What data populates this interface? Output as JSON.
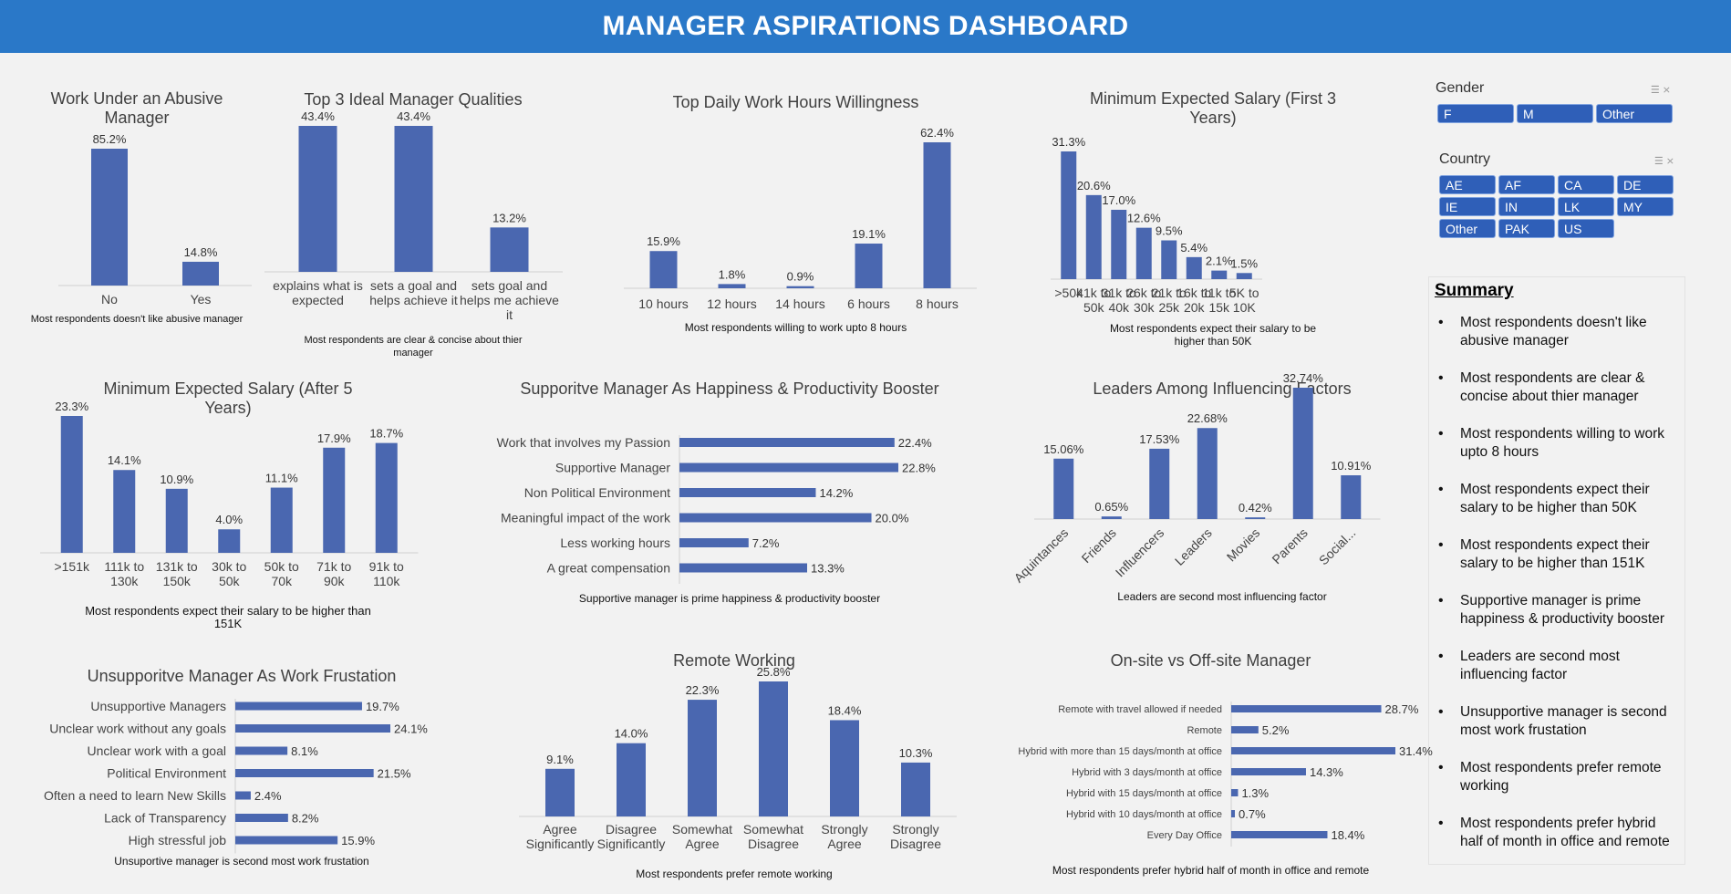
{
  "title": "MANAGER ASPIRATIONS DASHBOARD",
  "colors": {
    "header": "#2a78c8",
    "bar": "#4a67b0",
    "chip": "#2f5fb8",
    "background": "#f2f2f2"
  },
  "slicers": {
    "gender": {
      "title": "Gender",
      "items": [
        "F",
        "M",
        "Other"
      ],
      "icons": [
        "multi-select-icon",
        "clear-filter-icon"
      ]
    },
    "country": {
      "title": "Country",
      "items": [
        "AE",
        "AF",
        "CA",
        "DE",
        "IE",
        "IN",
        "LK",
        "MY",
        "Other",
        "PAK",
        "US"
      ],
      "icons": [
        "multi-select-icon",
        "clear-filter-icon"
      ]
    }
  },
  "summary": {
    "title": "Summary",
    "items": [
      "Most respondents doesn't like abusive manager",
      "Most respondents are clear & concise about thier manager",
      "Most respondents willing to work upto 8 hours",
      "Most respondents expect their salary to be higher than 50K",
      "Most respondents expect their salary to be higher than 151K",
      "Supportive manager is prime happiness & productivity booster",
      "Leaders are second most influencing factor",
      "Unsupportive manager is second most work frustation",
      "Most respondents prefer remote working",
      "Most respondents prefer hybrid half of month in office and remote"
    ]
  },
  "chart_data": [
    {
      "id": "abusive",
      "type": "bar",
      "title": "Work Under an Abusive Manager",
      "categories": [
        "No",
        "Yes"
      ],
      "values": [
        85.2,
        14.8
      ],
      "labels": [
        "85.2%",
        "14.8%"
      ],
      "note": "Most respondents doesn't like abusive manager"
    },
    {
      "id": "qualities",
      "type": "bar",
      "title": "Top 3 Ideal Manager Qualities",
      "categories": [
        "explains what is expected",
        "sets a goal and helps achieve it",
        "sets goal and helps me achieve it"
      ],
      "values": [
        43.4,
        43.4,
        13.2
      ],
      "labels": [
        "43.4%",
        "43.4%",
        "13.2%"
      ],
      "note": "Most respondents are clear & concise about thier manager"
    },
    {
      "id": "hours",
      "type": "bar",
      "title": "Top Daily Work Hours Willingness",
      "categories": [
        "10 hours",
        "12 hours",
        "14 hours",
        "6 hours",
        "8 hours"
      ],
      "values": [
        15.9,
        1.8,
        0.9,
        19.1,
        62.4
      ],
      "labels": [
        "15.9%",
        "1.8%",
        "0.9%",
        "19.1%",
        "62.4%"
      ],
      "note": "Most respondents willing to work upto 8 hours"
    },
    {
      "id": "salary3",
      "type": "bar",
      "title": "Minimum Expected Salary (First 3 Years)",
      "categories": [
        ">50k",
        "41k to 50k",
        "31k to 40k",
        "26k to 30k",
        "21k to 25k",
        "16k to 20k",
        "11k to 15k",
        "5K to 10K"
      ],
      "values": [
        31.3,
        20.6,
        17.0,
        12.6,
        9.5,
        5.4,
        2.1,
        1.5
      ],
      "labels": [
        "31.3%",
        "20.6%",
        "17.0%",
        "12.6%",
        "9.5%",
        "5.4%",
        "2.1%",
        "1.5%"
      ],
      "note": "Most respondents expect their salary to be higher than 50K"
    },
    {
      "id": "salary5",
      "type": "bar",
      "title": "Minimum Expected Salary (After 5 Years)",
      "categories": [
        ">151k",
        "111k to 130k",
        "131k to 150k",
        "30k to 50k",
        "50k to 70k",
        "71k to 90k",
        "91k to 110k"
      ],
      "values": [
        23.3,
        14.1,
        10.9,
        4.0,
        11.1,
        17.9,
        18.7
      ],
      "labels": [
        "23.3%",
        "14.1%",
        "10.9%",
        "4.0%",
        "11.1%",
        "17.9%",
        "18.7%"
      ],
      "note": "Most respondents expect their salary to be higher than 151K"
    },
    {
      "id": "supportive",
      "type": "bar",
      "orientation": "horizontal",
      "title": "Supporitve Manager As Happiness & Productivity Booster",
      "categories": [
        "Work that involves my Passion",
        "Supportive Manager",
        "Non Political Environment",
        "Meaningful impact of the work",
        "Less working hours",
        "A great compensation"
      ],
      "values": [
        22.4,
        22.8,
        14.2,
        20.0,
        7.2,
        13.3
      ],
      "labels": [
        "22.4%",
        "22.8%",
        "14.2%",
        "20.0%",
        "7.2%",
        "13.3%"
      ],
      "note": "Supportive manager is prime happiness & productivity booster"
    },
    {
      "id": "influencers",
      "type": "bar",
      "title": "Leaders Among Influencing Factors",
      "categories": [
        "Aquintances",
        "Friends",
        "Influencers",
        "Leaders",
        "Movies",
        "Parents",
        "Social..."
      ],
      "values": [
        15.06,
        0.65,
        17.53,
        22.68,
        0.42,
        32.74,
        10.91
      ],
      "labels": [
        "15.06%",
        "0.65%",
        "17.53%",
        "22.68%",
        "0.42%",
        "32.74%",
        "10.91%"
      ],
      "note": "Leaders are second most influencing factor"
    },
    {
      "id": "unsupportive",
      "type": "bar",
      "orientation": "horizontal",
      "title": "Unsupporitve Manager As Work Frustation",
      "categories": [
        "Unsupportive Managers",
        "Unclear work without any goals",
        "Unclear work with a goal",
        "Political Environment",
        "Often a need to learn New Skills",
        "Lack of Transparency",
        "High stressful job"
      ],
      "values": [
        19.7,
        24.1,
        8.1,
        21.5,
        2.4,
        8.2,
        15.9
      ],
      "labels": [
        "19.7%",
        "24.1%",
        "8.1%",
        "21.5%",
        "2.4%",
        "8.2%",
        "15.9%"
      ],
      "note": "Unsuportive manager is second most work frustation"
    },
    {
      "id": "remote",
      "type": "bar",
      "title": "Remote Working",
      "categories": [
        "Agree Significantly",
        "Disagree Significantly",
        "Somewhat Agree",
        "Somewhat Disagree",
        "Strongly Agree",
        "Strongly Disagree"
      ],
      "values": [
        9.1,
        14.0,
        22.3,
        25.8,
        18.4,
        10.3
      ],
      "labels": [
        "9.1%",
        "14.0%",
        "22.3%",
        "25.8%",
        "18.4%",
        "10.3%"
      ],
      "note": "Most respondents prefer remote working"
    },
    {
      "id": "onsite",
      "type": "bar",
      "orientation": "horizontal",
      "title": "On-site vs Off-site Manager",
      "categories": [
        "Remote with travel allowed if needed",
        "Remote",
        "Hybrid with more than 15 days/month at office",
        "Hybrid with 3 days/month at office",
        "Hybrid with 15 days/month at office",
        "Hybrid with 10 days/month at office",
        "Every Day Office"
      ],
      "values": [
        28.7,
        5.2,
        31.4,
        14.3,
        1.3,
        0.7,
        18.4
      ],
      "labels": [
        "28.7%",
        "5.2%",
        "31.4%",
        "14.3%",
        "1.3%",
        "0.7%",
        "18.4%"
      ],
      "note": "Most respondents prefer hybrid half of month in office and remote"
    }
  ]
}
